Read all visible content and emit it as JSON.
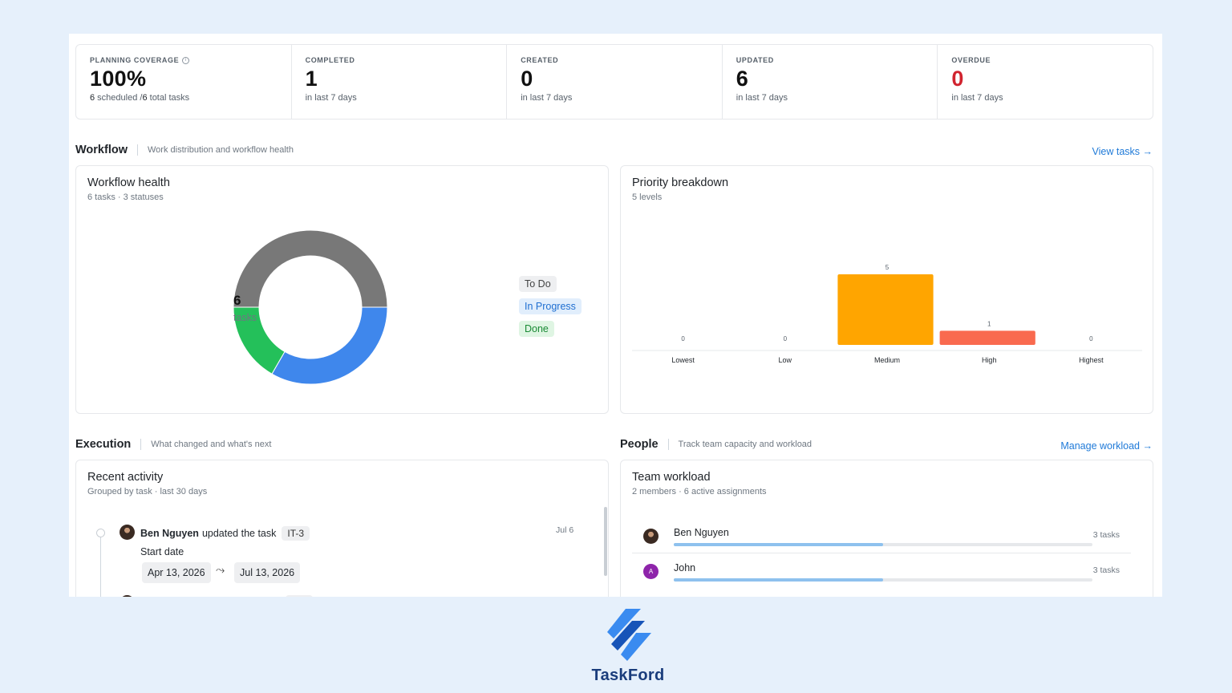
{
  "stats": [
    {
      "label": "PLANNING COVERAGE",
      "value": "100%",
      "sub_strong1": "6",
      "sub_mid": " scheduled /",
      "sub_strong2": "6",
      "sub_end": " total tasks"
    },
    {
      "label": "COMPLETED",
      "value": "1",
      "sub": "in last 7 days"
    },
    {
      "label": "CREATED",
      "value": "0",
      "sub": "in last 7 days"
    },
    {
      "label": "UPDATED",
      "value": "6",
      "sub": "in last 7 days"
    },
    {
      "label": "OVERDUE",
      "value": "0",
      "sub": "in last 7 days"
    }
  ],
  "workflow": {
    "title": "Workflow",
    "desc": "Work distribution and workflow health",
    "link": "View tasks →"
  },
  "workflow_health": {
    "title": "Workflow health",
    "sub": "6 tasks · 3 statuses",
    "center_value": "6",
    "center_label": "tasks",
    "legend": [
      "To Do",
      "In Progress",
      "Done"
    ]
  },
  "priority": {
    "title": "Priority breakdown",
    "sub": "5 levels"
  },
  "chart_data": [
    {
      "type": "pie",
      "categories": [
        "To Do",
        "In Progress",
        "Done"
      ],
      "values": [
        3,
        2,
        1
      ],
      "colors": [
        "#787878",
        "#3f87ec",
        "#24c05a"
      ]
    },
    {
      "type": "bar",
      "categories": [
        "Lowest",
        "Low",
        "Medium",
        "High",
        "Highest"
      ],
      "values": [
        0,
        0,
        5,
        1,
        0
      ],
      "colors": [
        "#ffa500",
        "#ffa500",
        "#ffa500",
        "#f96a4f",
        "#ffa500"
      ],
      "ylim": [
        0,
        5
      ]
    }
  ],
  "execution": {
    "title": "Execution",
    "desc": "What changed and what's next"
  },
  "activity": {
    "title": "Recent activity",
    "sub": "Grouped by task · last 30 days",
    "user": "Ben Nguyen",
    "action": "updated the task",
    "task": "IT-3",
    "date": "Jul 6",
    "field": "Start date",
    "from": "Apr 13, 2026",
    "to": "Jul 13, 2026"
  },
  "people": {
    "title": "People",
    "desc": "Track team capacity and workload",
    "link": "Manage workload →"
  },
  "workload": {
    "title": "Team workload",
    "sub": "2 members · 6 active assignments",
    "members": [
      {
        "name": "Ben Nguyen",
        "count": "3 tasks",
        "share": 0.5
      },
      {
        "name": "John",
        "count": "3 tasks",
        "share": 0.5,
        "initial": "A"
      }
    ]
  },
  "brand": {
    "name": "TaskFord"
  },
  "icons": {
    "info": "info-icon",
    "arrow": "curved-arrow-icon"
  }
}
